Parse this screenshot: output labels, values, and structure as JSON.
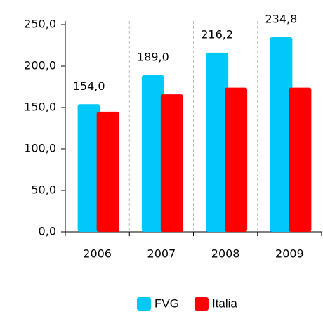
{
  "chart_data": {
    "type": "bar",
    "categories": [
      "2006",
      "2007",
      "2008",
      "2009"
    ],
    "series": [
      {
        "name": "FVG",
        "color": "#00c8f8",
        "values": [
          154.0,
          189.0,
          216.2,
          234.8
        ],
        "value_labels": [
          "154,0",
          "189,0",
          "216,2",
          "234,8"
        ]
      },
      {
        "name": "Italia",
        "color": "#ff0000",
        "values": [
          145,
          166,
          174,
          174
        ]
      }
    ],
    "ylim": [
      0,
      250
    ],
    "yticks": [
      {
        "value": 0,
        "label": "0,0"
      },
      {
        "value": 50,
        "label": "50,0"
      },
      {
        "value": 100,
        "label": "100,0"
      },
      {
        "value": 150,
        "label": "150,0"
      },
      {
        "value": 200,
        "label": "200,0"
      },
      {
        "value": 250,
        "label": "250,0"
      }
    ],
    "legend": "bottom"
  }
}
